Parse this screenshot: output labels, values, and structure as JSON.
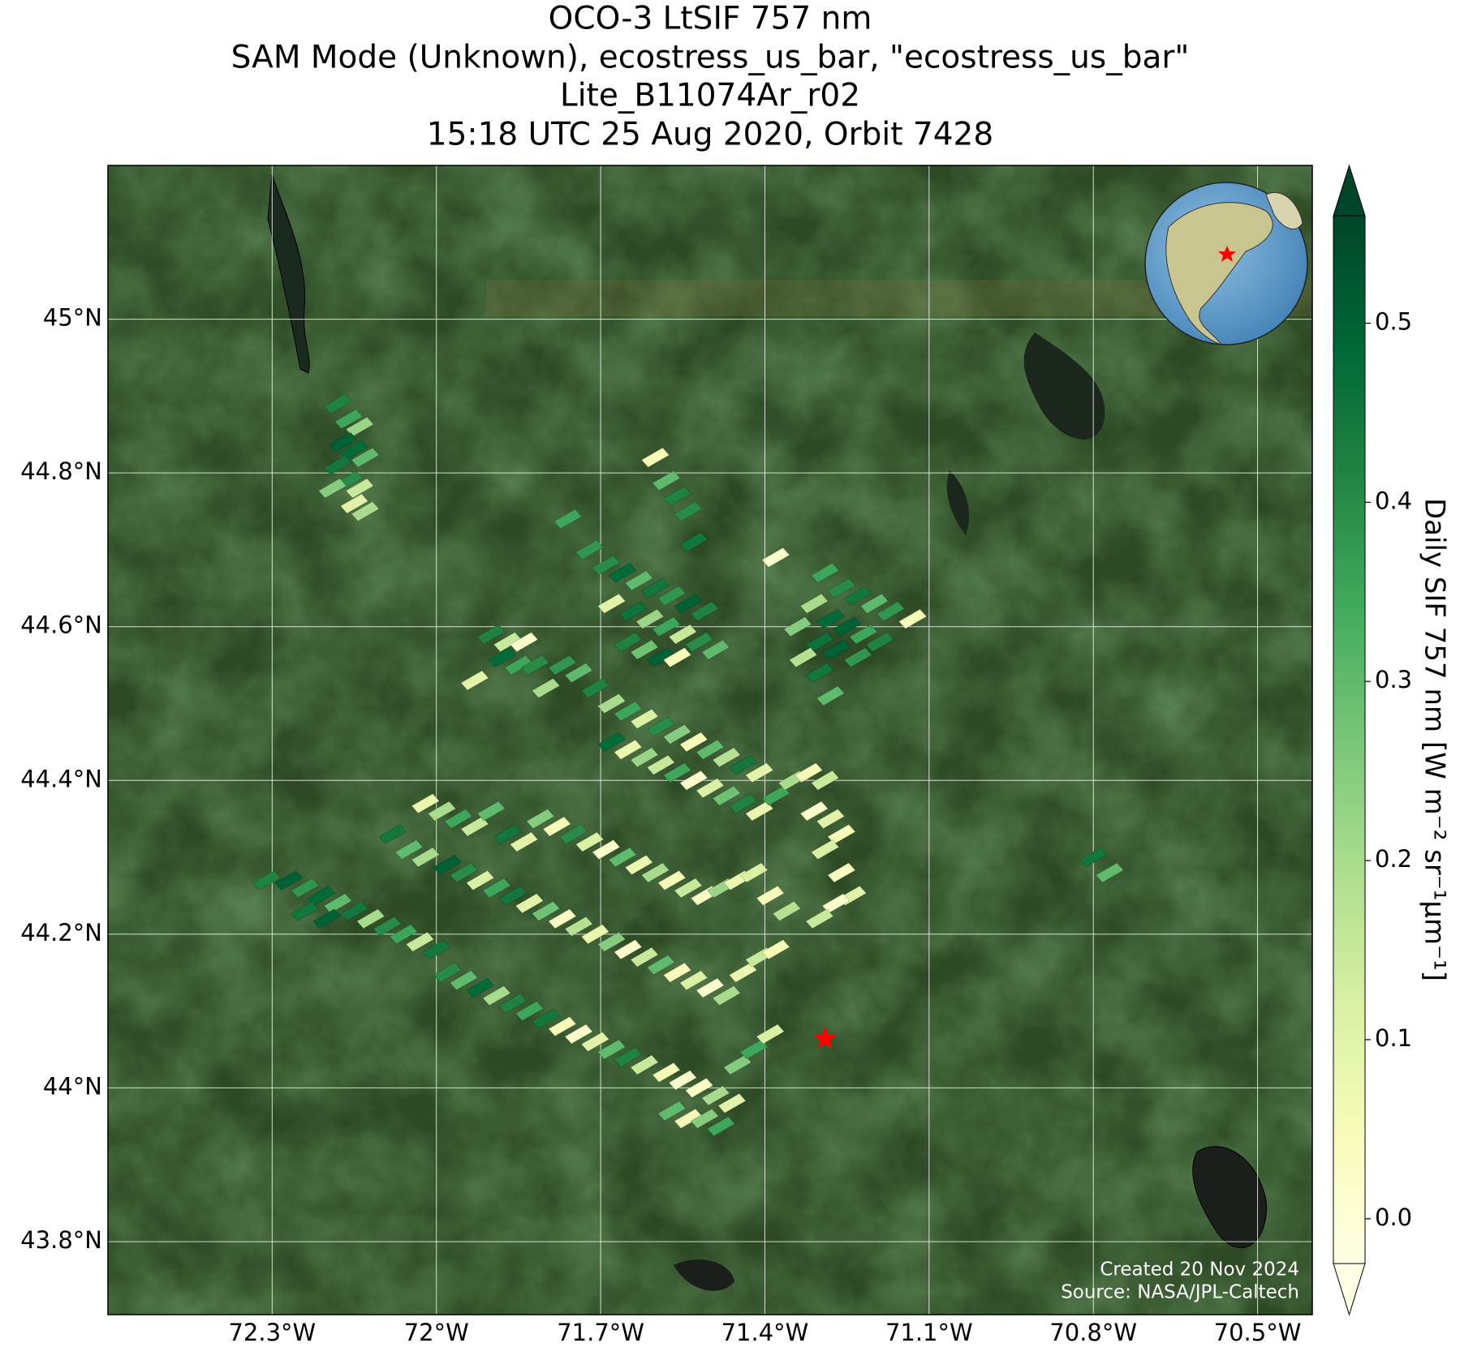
{
  "chart_data": {
    "type": "map",
    "title": [
      "OCO-3 LtSIF 757 nm",
      "SAM Mode (Unknown), ecostress_us_bar, \"ecostress_us_bar\"",
      "Lite_B11074Ar_r02",
      "15:18 UTC 25 Aug 2020, Orbit 7428"
    ],
    "x": [
      -72.18,
      -72.16,
      -72.14,
      -72.17,
      -72.15,
      -72.13,
      -72.18,
      -72.16,
      -72.14,
      -72.19,
      -72.15,
      -72.13,
      -71.6,
      -71.58,
      -71.56,
      -71.54,
      -71.76,
      -71.53,
      -71.38,
      -71.72,
      -71.69,
      -71.66,
      -71.63,
      -71.6,
      -71.57,
      -71.54,
      -71.51,
      -71.68,
      -71.64,
      -71.61,
      -71.58,
      -71.55,
      -71.52,
      -71.65,
      -71.62,
      -71.59,
      -71.56,
      -71.49,
      -71.29,
      -71.26,
      -71.23,
      -71.2,
      -71.17,
      -71.13,
      -71.31,
      -71.28,
      -71.25,
      -71.22,
      -71.19,
      -71.34,
      -71.3,
      -71.27,
      -71.23,
      -71.33,
      -71.3,
      -71.28,
      -70.8,
      -70.77,
      -71.9,
      -71.87,
      -71.84,
      -71.88,
      -71.85,
      -71.82,
      -71.93,
      -71.8,
      -71.77,
      -71.74,
      -71.71,
      -71.68,
      -71.65,
      -71.62,
      -71.59,
      -71.56,
      -71.53,
      -71.5,
      -71.47,
      -71.44,
      -71.41,
      -71.68,
      -71.65,
      -71.62,
      -71.59,
      -71.56,
      -71.53,
      -71.5,
      -71.47,
      -71.44,
      -71.41,
      -71.38,
      -71.35,
      -71.32,
      -71.29,
      -71.31,
      -71.28,
      -71.26,
      -71.29,
      -71.26,
      -71.24,
      -71.27,
      -71.3,
      -72.02,
      -71.99,
      -71.96,
      -71.93,
      -71.9,
      -71.87,
      -71.84,
      -71.81,
      -71.78,
      -71.75,
      -71.72,
      -71.69,
      -71.66,
      -71.63,
      -71.6,
      -71.57,
      -71.54,
      -71.51,
      -71.48,
      -71.45,
      -71.42,
      -71.39,
      -71.36,
      -72.08,
      -72.05,
      -72.02,
      -71.98,
      -71.95,
      -71.92,
      -71.89,
      -71.86,
      -71.83,
      -71.8,
      -71.77,
      -71.74,
      -71.71,
      -71.68,
      -71.65,
      -71.62,
      -71.59,
      -71.56,
      -71.53,
      -71.5,
      -71.47,
      -71.44,
      -71.41,
      -71.38,
      -72.31,
      -72.27,
      -72.24,
      -72.21,
      -72.18,
      -72.15,
      -72.12,
      -72.24,
      -72.2,
      -72.09,
      -72.06,
      -72.03,
      -72,
      -71.98,
      -71.95,
      -71.92,
      -71.89,
      -71.86,
      -71.83,
      -71.8,
      -71.77,
      -71.74,
      -71.71,
      -71.68,
      -71.65,
      -71.62,
      -71.58,
      -71.55,
      -71.52,
      -71.49,
      -71.46,
      -71.57,
      -71.54,
      -71.51,
      -71.48,
      -71.45,
      -71.42,
      -71.39
    ],
    "y": [
      44.89,
      44.87,
      44.86,
      44.84,
      44.83,
      44.82,
      44.81,
      44.79,
      44.78,
      44.78,
      44.76,
      44.75,
      44.82,
      44.79,
      44.77,
      44.75,
      44.74,
      44.71,
      44.69,
      44.7,
      44.68,
      44.67,
      44.66,
      44.65,
      44.64,
      44.63,
      44.62,
      44.63,
      44.62,
      44.61,
      44.6,
      44.59,
      44.58,
      44.58,
      44.57,
      44.56,
      44.56,
      44.57,
      44.67,
      44.65,
      44.64,
      44.63,
      44.62,
      44.61,
      44.63,
      44.61,
      44.6,
      44.59,
      44.58,
      44.6,
      44.58,
      44.57,
      44.56,
      44.56,
      44.54,
      44.51,
      44.3,
      44.28,
      44.59,
      44.58,
      44.58,
      44.56,
      44.55,
      44.55,
      44.53,
      44.52,
      44.55,
      44.54,
      44.52,
      44.5,
      44.49,
      44.48,
      44.47,
      44.46,
      44.45,
      44.44,
      44.43,
      44.42,
      44.41,
      44.45,
      44.44,
      44.43,
      44.42,
      44.41,
      44.4,
      44.39,
      44.38,
      44.37,
      44.36,
      44.38,
      44.4,
      44.41,
      44.4,
      44.36,
      44.35,
      44.33,
      44.31,
      44.28,
      44.25,
      44.24,
      44.22,
      44.37,
      44.36,
      44.35,
      44.34,
      44.36,
      44.33,
      44.32,
      44.35,
      44.34,
      44.33,
      44.32,
      44.31,
      44.3,
      44.29,
      44.28,
      44.27,
      44.26,
      44.25,
      44.26,
      44.27,
      44.28,
      44.25,
      44.23,
      44.33,
      44.31,
      44.3,
      44.29,
      44.28,
      44.27,
      44.26,
      44.25,
      44.24,
      44.23,
      44.22,
      44.21,
      44.2,
      44.19,
      44.18,
      44.17,
      44.16,
      44.15,
      44.14,
      44.13,
      44.12,
      44.15,
      44.17,
      44.18,
      44.27,
      44.27,
      44.26,
      44.25,
      44.24,
      44.23,
      44.22,
      44.23,
      44.22,
      44.21,
      44.2,
      44.19,
      44.18,
      44.15,
      44.14,
      44.13,
      44.12,
      44.11,
      44.1,
      44.09,
      44.08,
      44.07,
      44.06,
      44.05,
      44.04,
      44.03,
      44.02,
      44.01,
      44,
      43.99,
      43.98,
      43.97,
      43.96,
      43.96,
      43.95,
      44.03,
      44.05,
      44.07
    ],
    "values": [
      0.42,
      0.35,
      0.22,
      0.5,
      0.48,
      0.3,
      0.45,
      0.4,
      0.15,
      0.25,
      0.1,
      0.2,
      0.05,
      0.3,
      0.42,
      0.4,
      0.35,
      0.45,
      0.02,
      0.38,
      0.4,
      0.48,
      0.3,
      0.45,
      0.38,
      0.5,
      0.42,
      0.1,
      0.46,
      0.22,
      0.35,
      0.15,
      0.4,
      0.42,
      0.28,
      0.5,
      0.05,
      0.3,
      0.35,
      0.4,
      0.45,
      0.3,
      0.38,
      0.05,
      0.2,
      0.48,
      0.5,
      0.35,
      0.42,
      0.25,
      0.46,
      0.5,
      0.38,
      0.18,
      0.45,
      0.3,
      0.45,
      0.3,
      0.42,
      0.15,
      0.02,
      0.48,
      0.35,
      0.4,
      0.1,
      0.2,
      0.38,
      0.3,
      0.42,
      0.2,
      0.35,
      0.12,
      0.4,
      0.25,
      0.05,
      0.3,
      0.18,
      0.45,
      0.1,
      0.48,
      0.08,
      0.22,
      0.15,
      0.35,
      0.02,
      0.12,
      0.28,
      0.42,
      0.08,
      0.35,
      0.2,
      0.05,
      0.15,
      0.02,
      0.1,
      0.05,
      0.12,
      0.04,
      0.1,
      0.02,
      0.15,
      0.08,
      0.2,
      0.35,
      0.15,
      0.3,
      0.45,
      0.1,
      0.25,
      0.05,
      0.4,
      0.12,
      0.02,
      0.3,
      0.08,
      0.2,
      0.05,
      0.15,
      0.03,
      0.22,
      0.08,
      0.12,
      0.05,
      0.18,
      0.45,
      0.3,
      0.2,
      0.5,
      0.4,
      0.12,
      0.35,
      0.45,
      0.1,
      0.28,
      0.03,
      0.18,
      0.08,
      0.25,
      0.02,
      0.15,
      0.3,
      0.05,
      0.12,
      0.02,
      0.2,
      0.08,
      0.15,
      0.05,
      0.42,
      0.5,
      0.38,
      0.48,
      0.3,
      0.45,
      0.2,
      0.45,
      0.5,
      0.4,
      0.35,
      0.15,
      0.45,
      0.4,
      0.3,
      0.48,
      0.2,
      0.42,
      0.35,
      0.45,
      0.05,
      0.02,
      0.1,
      0.3,
      0.42,
      0.15,
      0.05,
      0.02,
      0.03,
      0.2,
      0.1,
      0.3,
      0.05,
      0.25,
      0.35,
      0.25,
      0.35,
      0.12
    ],
    "xlim": [
      -72.6,
      -70.4
    ],
    "ylim": [
      43.705,
      45.2
    ],
    "xticks": [
      {
        "value": -72.3,
        "label": "72.3°W"
      },
      {
        "value": -72,
        "label": "72°W"
      },
      {
        "value": -71.7,
        "label": "71.7°W"
      },
      {
        "value": -71.4,
        "label": "71.4°W"
      },
      {
        "value": -71.1,
        "label": "71.1°W"
      },
      {
        "value": -70.8,
        "label": "70.8°W"
      },
      {
        "value": -70.5,
        "label": "70.5°W"
      }
    ],
    "yticks": [
      {
        "value": 43.8,
        "label": "43.8°N"
      },
      {
        "value": 44,
        "label": "44°N"
      },
      {
        "value": 44.2,
        "label": "44.2°N"
      },
      {
        "value": 44.4,
        "label": "44.4°N"
      },
      {
        "value": 44.6,
        "label": "44.6°N"
      },
      {
        "value": 44.8,
        "label": "44.8°N"
      },
      {
        "value": 45,
        "label": "45°N"
      }
    ],
    "grid": true,
    "colormap": [
      "#ffffe5",
      "#f7fcb9",
      "#d9f0a3",
      "#addd8e",
      "#78c679",
      "#41ab5d",
      "#238443",
      "#006837",
      "#004529"
    ],
    "clim": [
      -0.025,
      0.56
    ],
    "cticks": [
      {
        "value": 0,
        "label": "0.0"
      },
      0.1,
      0.2,
      0.3,
      0.4,
      0.5
    ],
    "colorbar_label": "Daily SIF 757 nm [W m⁻² sr⁻¹μm⁻¹]",
    "site": {
      "x": -71.29,
      "y": 44.064,
      "color": "#ff0000"
    },
    "credits": [
      "Created 20 Nov 2024",
      "Source: NASA/JPL-Caltech"
    ]
  }
}
